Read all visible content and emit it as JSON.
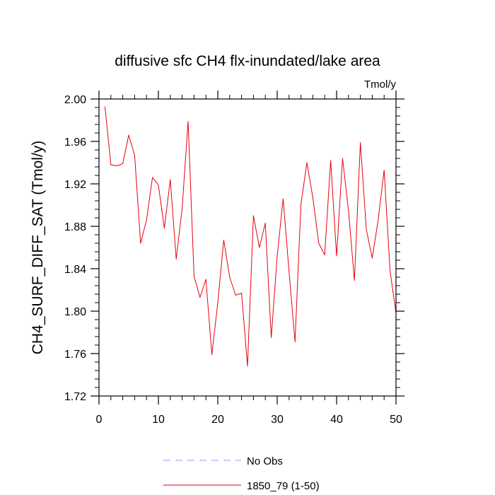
{
  "chart_data": {
    "type": "line",
    "title": "diffusive sfc CH4 flx-inundated/lake area",
    "units": "Tmol/y",
    "ylabel": "CH4_SURF_DIFF_SAT  (Tmol/y)",
    "xlabel": "",
    "xlim": [
      0,
      50
    ],
    "ylim": [
      1.72,
      2.0
    ],
    "xticks": [
      0,
      10,
      20,
      30,
      40,
      50
    ],
    "xtick_labels": [
      "0",
      "10",
      "20",
      "30",
      "40",
      "50"
    ],
    "yticks": [
      1.72,
      1.76,
      1.8,
      1.84,
      1.88,
      1.92,
      1.96,
      2.0
    ],
    "ytick_labels": [
      "1.72",
      "1.76",
      "1.80",
      "1.84",
      "1.88",
      "1.92",
      "1.96",
      "2.00"
    ],
    "grid": false,
    "legend_position": "bottom",
    "legend": [
      {
        "label": "No Obs",
        "color": "#9999ff",
        "style": "dashed"
      },
      {
        "label": "1850_79 (1-50)",
        "color": "#e8000b",
        "style": "solid"
      }
    ],
    "series": [
      {
        "name": "1850_79 (1-50)",
        "color": "#e8000b",
        "x": [
          1,
          2,
          3,
          4,
          5,
          6,
          7,
          8,
          9,
          10,
          11,
          12,
          13,
          14,
          15,
          16,
          17,
          18,
          19,
          20,
          21,
          22,
          23,
          24,
          25,
          26,
          27,
          28,
          29,
          30,
          31,
          32,
          33,
          34,
          35,
          36,
          37,
          38,
          39,
          40,
          41,
          42,
          43,
          44,
          45,
          46,
          47,
          48,
          49,
          50
        ],
        "y": [
          1.993,
          1.938,
          1.937,
          1.939,
          1.966,
          1.947,
          1.864,
          1.886,
          1.926,
          1.919,
          1.878,
          1.924,
          1.849,
          1.897,
          1.979,
          1.833,
          1.813,
          1.83,
          1.759,
          1.808,
          1.867,
          1.832,
          1.815,
          1.817,
          1.748,
          1.89,
          1.86,
          1.883,
          1.775,
          1.852,
          1.906,
          1.837,
          1.771,
          1.901,
          1.94,
          1.907,
          1.864,
          1.853,
          1.942,
          1.852,
          1.944,
          1.895,
          1.829,
          1.959,
          1.877,
          1.85,
          1.886,
          1.933,
          1.838,
          1.798
        ]
      }
    ]
  }
}
